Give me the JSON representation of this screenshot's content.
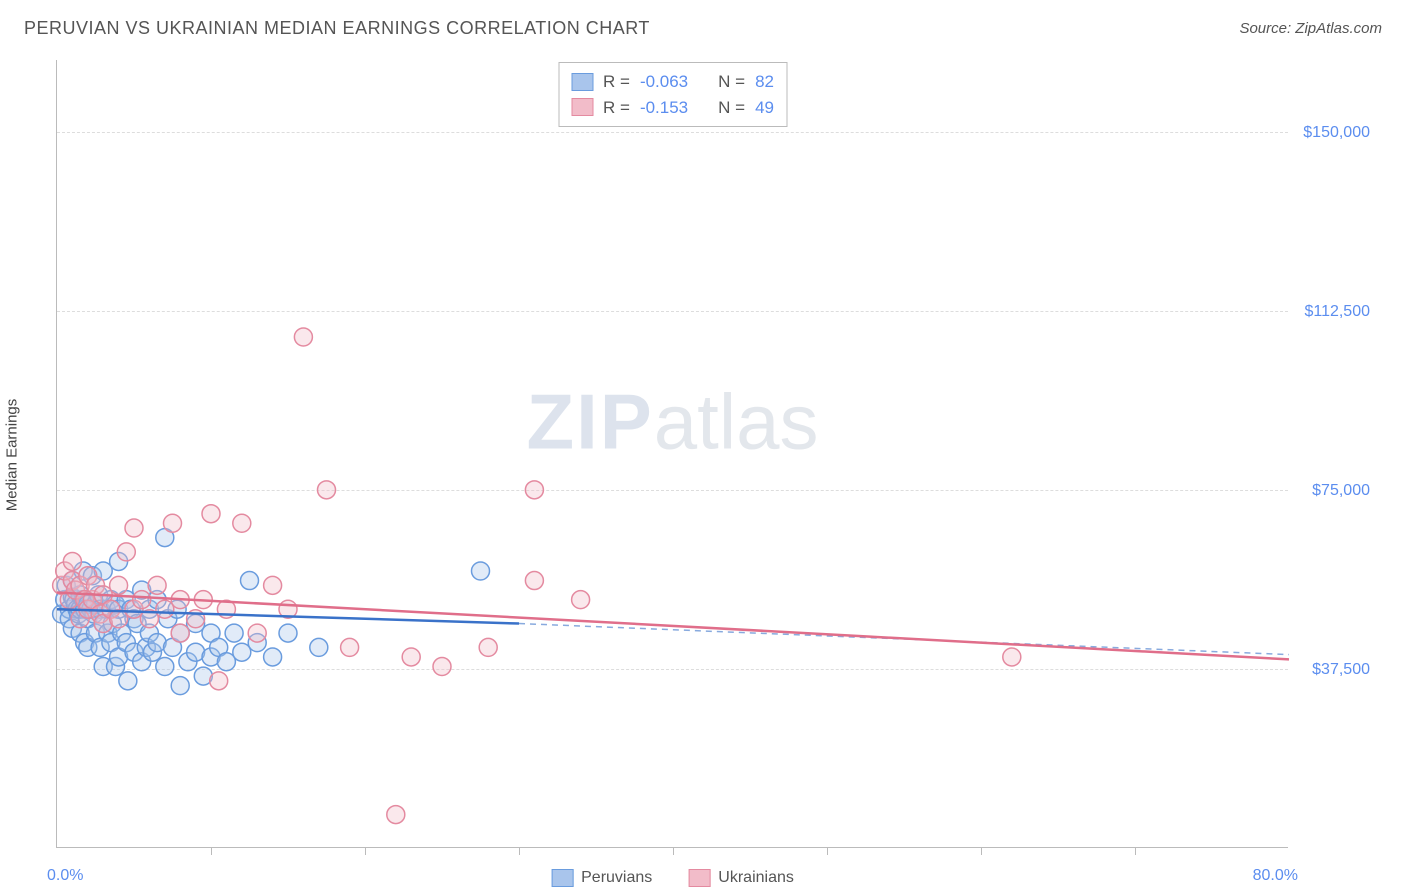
{
  "header": {
    "title": "PERUVIAN VS UKRAINIAN MEDIAN EARNINGS CORRELATION CHART",
    "source": "Source: ZipAtlas.com"
  },
  "watermark": {
    "zip": "ZIP",
    "atlas": "atlas"
  },
  "chart": {
    "type": "scatter",
    "ylabel": "Median Earnings",
    "xlim": [
      0,
      80
    ],
    "ylim": [
      0,
      165000
    ],
    "x_tick_labels": {
      "left": "0.0%",
      "right": "80.0%"
    },
    "x_ticks": [
      10,
      20,
      30,
      40,
      50,
      60,
      70
    ],
    "y_gridlines": [
      {
        "value": 37500,
        "label": "$37,500"
      },
      {
        "value": 75000,
        "label": "$75,000"
      },
      {
        "value": 112500,
        "label": "$112,500"
      },
      {
        "value": 150000,
        "label": "$150,000"
      }
    ],
    "background_color": "#ffffff",
    "grid_color": "#dddddd",
    "axis_color": "#bbbbbb",
    "tick_label_color": "#5b8def",
    "marker_radius": 9,
    "marker_stroke_width": 1.5,
    "marker_fill_opacity": 0.35,
    "regression_line_width": 2.5,
    "series": [
      {
        "name": "Peruvians",
        "color_fill": "#a9c5ec",
        "color_stroke": "#6a9cde",
        "line_color": "#3a72c9",
        "R": "-0.063",
        "N": "82",
        "regression": {
          "x1": 0,
          "y1": 50000,
          "x2": 30,
          "y2": 47000,
          "dashed_to_x": 80,
          "dashed_to_y": 40500
        },
        "points": [
          [
            0.3,
            49000
          ],
          [
            0.5,
            52000
          ],
          [
            0.6,
            55000
          ],
          [
            0.8,
            50000
          ],
          [
            0.8,
            48000
          ],
          [
            1.0,
            56000
          ],
          [
            1.0,
            52500
          ],
          [
            1.0,
            46000
          ],
          [
            1.1,
            52000
          ],
          [
            1.2,
            51000
          ],
          [
            1.3,
            50000
          ],
          [
            1.4,
            49000
          ],
          [
            1.5,
            53000
          ],
          [
            1.5,
            50000
          ],
          [
            1.5,
            45000
          ],
          [
            1.7,
            58000
          ],
          [
            1.7,
            52000
          ],
          [
            1.8,
            50000
          ],
          [
            1.8,
            43000
          ],
          [
            2.0,
            51000
          ],
          [
            2.0,
            48000
          ],
          [
            2.0,
            42000
          ],
          [
            2.2,
            50000
          ],
          [
            2.3,
            57000
          ],
          [
            2.4,
            49000
          ],
          [
            2.5,
            45000
          ],
          [
            2.5,
            51000
          ],
          [
            2.7,
            53000
          ],
          [
            2.8,
            50000
          ],
          [
            2.8,
            42000
          ],
          [
            3.0,
            58000
          ],
          [
            3.0,
            47000
          ],
          [
            3.0,
            38000
          ],
          [
            3.2,
            50000
          ],
          [
            3.3,
            45000
          ],
          [
            3.5,
            52000
          ],
          [
            3.5,
            43000
          ],
          [
            3.6,
            47000
          ],
          [
            3.8,
            51000
          ],
          [
            3.8,
            38000
          ],
          [
            4.0,
            60000
          ],
          [
            4.0,
            50000
          ],
          [
            4.0,
            40000
          ],
          [
            4.2,
            45000
          ],
          [
            4.5,
            52000
          ],
          [
            4.5,
            43000
          ],
          [
            4.6,
            35000
          ],
          [
            4.8,
            50000
          ],
          [
            5.0,
            48000
          ],
          [
            5.0,
            41000
          ],
          [
            5.2,
            47000
          ],
          [
            5.5,
            54000
          ],
          [
            5.5,
            39000
          ],
          [
            5.8,
            42000
          ],
          [
            6.0,
            50000
          ],
          [
            6.0,
            45000
          ],
          [
            6.2,
            41000
          ],
          [
            6.5,
            52000
          ],
          [
            6.5,
            43000
          ],
          [
            7.0,
            65000
          ],
          [
            7.0,
            38000
          ],
          [
            7.2,
            48000
          ],
          [
            7.5,
            42000
          ],
          [
            7.8,
            50000
          ],
          [
            8.0,
            34000
          ],
          [
            8.0,
            45000
          ],
          [
            8.5,
            39000
          ],
          [
            9.0,
            47000
          ],
          [
            9.0,
            41000
          ],
          [
            9.5,
            36000
          ],
          [
            10.0,
            45000
          ],
          [
            10.0,
            40000
          ],
          [
            10.5,
            42000
          ],
          [
            11.0,
            39000
          ],
          [
            11.5,
            45000
          ],
          [
            12.0,
            41000
          ],
          [
            12.5,
            56000
          ],
          [
            13.0,
            43000
          ],
          [
            14.0,
            40000
          ],
          [
            15.0,
            45000
          ],
          [
            17.0,
            42000
          ],
          [
            27.5,
            58000
          ]
        ]
      },
      {
        "name": "Ukrainians",
        "color_fill": "#f2bcc9",
        "color_stroke": "#e48aa0",
        "line_color": "#e06e8a",
        "R": "-0.153",
        "N": "49",
        "regression": {
          "x1": 0,
          "y1": 53500,
          "x2": 80,
          "y2": 39500
        },
        "points": [
          [
            0.3,
            55000
          ],
          [
            0.5,
            58000
          ],
          [
            0.8,
            52000
          ],
          [
            1.0,
            56000
          ],
          [
            1.0,
            60000
          ],
          [
            1.2,
            54000
          ],
          [
            1.5,
            55000
          ],
          [
            1.5,
            48000
          ],
          [
            1.8,
            52000
          ],
          [
            2.0,
            50000
          ],
          [
            2.0,
            57000
          ],
          [
            2.3,
            52000
          ],
          [
            2.5,
            55000
          ],
          [
            2.8,
            49000
          ],
          [
            3.0,
            53000
          ],
          [
            3.0,
            47000
          ],
          [
            3.5,
            50000
          ],
          [
            4.0,
            55000
          ],
          [
            4.0,
            48000
          ],
          [
            4.5,
            62000
          ],
          [
            5.0,
            50000
          ],
          [
            5.0,
            67000
          ],
          [
            5.5,
            52000
          ],
          [
            6.0,
            48000
          ],
          [
            6.5,
            55000
          ],
          [
            7.0,
            50000
          ],
          [
            7.5,
            68000
          ],
          [
            8.0,
            52000
          ],
          [
            8.0,
            45000
          ],
          [
            9.0,
            48000
          ],
          [
            9.5,
            52000
          ],
          [
            10.0,
            70000
          ],
          [
            10.5,
            35000
          ],
          [
            11.0,
            50000
          ],
          [
            12.0,
            68000
          ],
          [
            13.0,
            45000
          ],
          [
            14.0,
            55000
          ],
          [
            15.0,
            50000
          ],
          [
            16.0,
            107000
          ],
          [
            17.5,
            75000
          ],
          [
            19.0,
            42000
          ],
          [
            22.0,
            7000
          ],
          [
            23.0,
            40000
          ],
          [
            25.0,
            38000
          ],
          [
            28.0,
            42000
          ],
          [
            31.0,
            75000
          ],
          [
            31.0,
            56000
          ],
          [
            34.0,
            52000
          ],
          [
            62.0,
            40000
          ]
        ]
      }
    ]
  },
  "stats_legend": {
    "R_label": "R =",
    "N_label": "N ="
  },
  "bottom_legend": [
    {
      "label": "Peruvians"
    },
    {
      "label": "Ukrainians"
    }
  ]
}
